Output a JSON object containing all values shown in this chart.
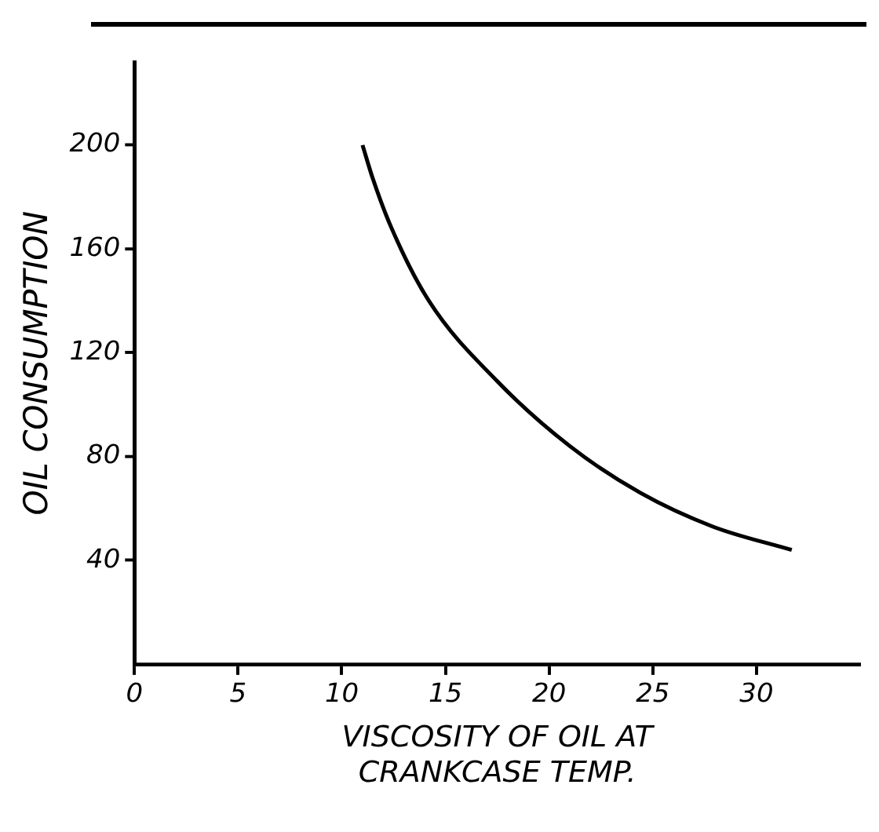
{
  "chart_data": {
    "type": "line",
    "xlabel": "VISCOSITY OF OIL AT\nCRANKCASE TEMP.",
    "ylabel": "OIL CONSUMPTION",
    "x": [
      11,
      11.5,
      12.4,
      14.2,
      17.5,
      21,
      24.4,
      27.9,
      31.7
    ],
    "series": [
      {
        "color": "#000000",
        "values": [
          200,
          187,
          168,
          140,
          109,
          84,
          66,
          53,
          44
        ]
      }
    ],
    "xlim": [
      0,
      35
    ],
    "xticks": [
      0,
      5,
      10,
      15,
      20,
      25,
      30
    ],
    "ylim": [
      0,
      232
    ],
    "yticks": [
      40,
      80,
      120,
      160,
      200
    ],
    "grid": false,
    "legend": false,
    "marker": "none",
    "line_style": "solid"
  }
}
